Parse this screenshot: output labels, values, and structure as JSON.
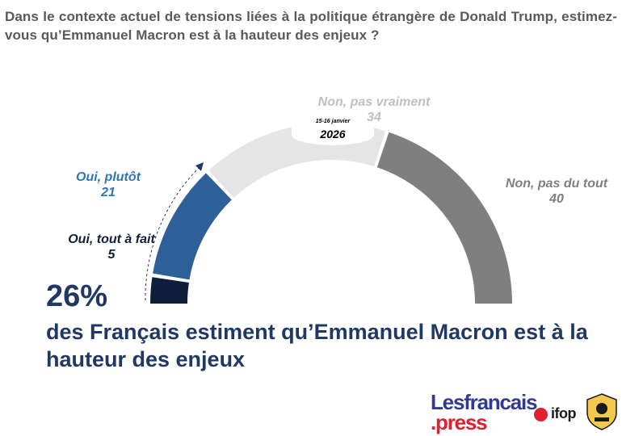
{
  "question": "Dans le contexte actuel de tensions liées à la politique étrangère de Donald Trump, estimez-vous qu’Emmanuel Macron est à la hauteur des enjeux ?",
  "date": {
    "days": "15-16 janvier",
    "year": "2026"
  },
  "headline": {
    "percent": "26%",
    "text": "des Français estiment qu’Emmanuel Macron est à la hauteur des enjeux"
  },
  "chart_data": {
    "type": "pie",
    "shape": "half-donut",
    "total": 100,
    "slices": [
      {
        "label": "Oui, tout à fait",
        "value": 5,
        "color": "#0d1f3a"
      },
      {
        "label": "Oui, plutôt",
        "value": 21,
        "color": "#2e5f99"
      },
      {
        "label": "Non, pas vraiment",
        "value": 34,
        "color": "#e5e5e5"
      },
      {
        "label": "Non, pas du tout",
        "value": 40,
        "color": "#7f7f7f"
      }
    ],
    "value_labels": [
      "5",
      "21",
      "34",
      "40"
    ],
    "label_colors": [
      "#0d1f3a",
      "#2e75b6",
      "#bfbfbf",
      "#7f7f7f"
    ]
  },
  "logos": {
    "brand_line1": "Lesfrancais",
    "brand_line2": ".press",
    "ifop": "ifop",
    "colors": {
      "brand_blue": "#2f3a93",
      "brand_red": "#e1202f"
    }
  }
}
